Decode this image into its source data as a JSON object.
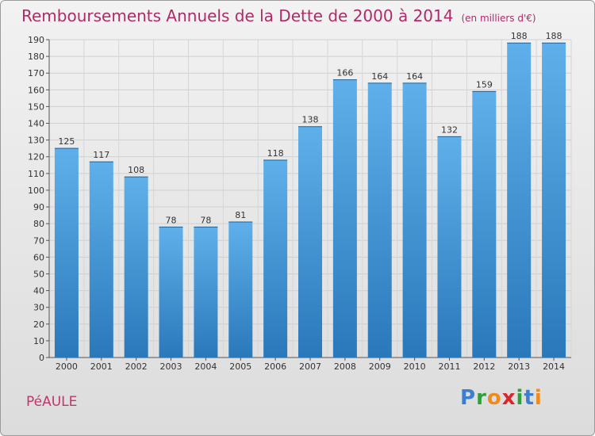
{
  "header": {
    "title": "Remboursements Annuels de la Dette de 2000 à 2014",
    "subtitle": "(en milliers d'€)"
  },
  "footer": {
    "commune": "PéAULE",
    "logo_letters": [
      "P",
      "r",
      "o",
      "x",
      "i",
      "t",
      "i"
    ]
  },
  "chart_data": {
    "type": "bar",
    "title": "Remboursements Annuels de la Dette de 2000 à 2014",
    "subtitle": "(en milliers d'€)",
    "xlabel": "",
    "ylabel": "",
    "categories": [
      "2000",
      "2001",
      "2002",
      "2003",
      "2004",
      "2005",
      "2006",
      "2007",
      "2008",
      "2009",
      "2010",
      "2011",
      "2012",
      "2013",
      "2014"
    ],
    "values": [
      125,
      117,
      108,
      78,
      78,
      81,
      118,
      138,
      166,
      164,
      164,
      132,
      159,
      188,
      188
    ],
    "ylim": [
      0,
      190
    ],
    "ytick_step": 10,
    "grid": true,
    "legend": "none",
    "colors": {
      "bar_light": "#5aaae6",
      "bar_dark": "#2a7bbd",
      "title": "#b02a6a"
    }
  }
}
